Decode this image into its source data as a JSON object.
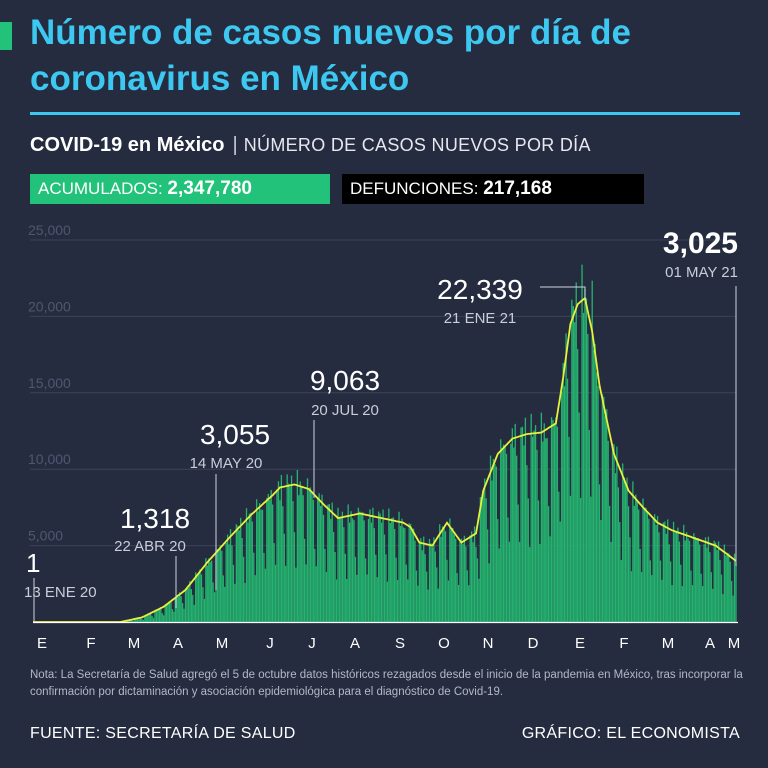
{
  "title": "Número de casos nuevos por día de coronavirus en México",
  "subtitle": {
    "brand": "COVID-19 en México",
    "separator": "|",
    "description": "NÚMERO DE CASOS NUEVOS POR DÍA"
  },
  "stats": {
    "acumulados_label": "ACUMULADOS:",
    "acumulados_value": "2,347,780",
    "defunciones_label": "DEFUNCIONES:",
    "defunciones_value": "217,168"
  },
  "colors": {
    "background": "#262c40",
    "title": "#3cc8f0",
    "accent_green": "#22c27a",
    "bar_green": "#25b36f",
    "curve": "#e8f23a",
    "defunciones_bg": "#000000"
  },
  "chart_data": {
    "type": "bar",
    "ylim": [
      0,
      25000
    ],
    "yticks": [
      "25,000",
      "20,000",
      "15,000",
      "10,000",
      "5,000"
    ],
    "ytick_values": [
      25000,
      20000,
      15000,
      10000,
      5000
    ],
    "xticks": [
      "E",
      "F",
      "M",
      "A",
      "M",
      "J",
      "J",
      "A",
      "S",
      "O",
      "N",
      "D",
      "E",
      "F",
      "M",
      "A",
      "M"
    ],
    "smoothed_curve": {
      "description": "7-day average trend line (yellow)",
      "day_index": [
        0,
        60,
        75,
        90,
        105,
        120,
        135,
        150,
        165,
        170,
        180,
        190,
        200,
        210,
        225,
        240,
        255,
        260,
        266,
        275,
        285,
        295,
        305,
        310,
        320,
        330,
        340,
        350,
        360,
        365,
        370,
        375,
        380,
        385,
        390,
        400,
        410,
        420,
        430,
        440,
        455,
        470,
        484
      ],
      "values": [
        0,
        0,
        300,
        1000,
        2100,
        3900,
        5500,
        7000,
        8300,
        8800,
        9000,
        8700,
        7700,
        6800,
        7100,
        6800,
        6500,
        6200,
        5200,
        5000,
        6500,
        5200,
        5800,
        8600,
        11000,
        12000,
        12300,
        12400,
        13000,
        16000,
        19500,
        20800,
        21200,
        19000,
        15500,
        11000,
        8600,
        7500,
        6500,
        6000,
        5500,
        5000,
        4000
      ]
    },
    "annotations": [
      {
        "value": "1",
        "date": "13 ENE 20"
      },
      {
        "value": "1,318",
        "date": "22 ABR 20"
      },
      {
        "value": "3,055",
        "date": "14 MAY 20"
      },
      {
        "value": "9,063",
        "date": "20 JUL 20"
      },
      {
        "value": "22,339",
        "date": "21 ENE 21"
      },
      {
        "value": "3,025",
        "date": "01 MAY 21"
      }
    ]
  },
  "footer": {
    "note": "Nota: La Secretaría de Salud agregó el 5 de octubre datos históricos rezagados desde el inicio de la pandemia en México, tras incorporar la confirmación por dictaminación y asociación epidemiológica para el diagnóstico de Covid-19.",
    "source": "FUENTE: SECRETARÍA DE SALUD",
    "credit": "GRÁFICO: EL ECONOMISTA"
  }
}
